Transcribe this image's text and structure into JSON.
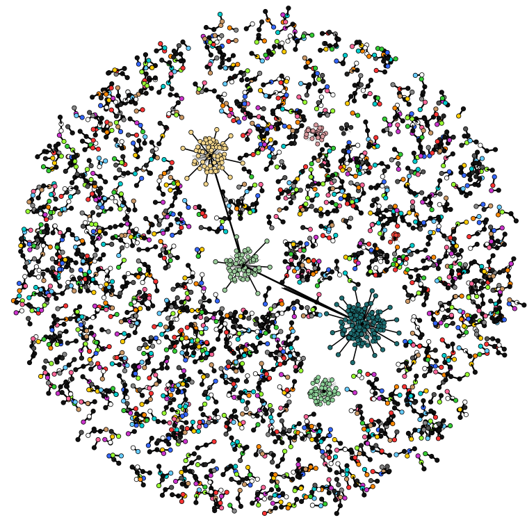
{
  "diagram": {
    "type": "network-graph",
    "layout": "force-directed",
    "labels_shown": false,
    "background_color": "#ffffff",
    "edge_color": "#000000",
    "node_stroke_color": "#000000",
    "node_shape": "circle",
    "small_component_colors": [
      "#ff3333",
      "#33cc33",
      "#3366ff",
      "#ffcc00",
      "#cc33cc",
      "#00cccc",
      "#ff8800",
      "#99ff33",
      "#888888",
      "#555555",
      "#ffffff",
      "#ffffff",
      "#222222",
      "#66ccff",
      "#ff6699",
      "#cc9966"
    ],
    "large_components": [
      {
        "id": "tan-cluster",
        "color": "#f2d58c",
        "approx_nodes": 70
      },
      {
        "id": "pink-cluster",
        "color": "#d99a9e",
        "approx_nodes": 25
      },
      {
        "id": "black-cluster",
        "color": "#333333",
        "approx_nodes": 6
      },
      {
        "id": "red-cluster",
        "color": "#e8443a",
        "approx_nodes": 8
      },
      {
        "id": "sage-cluster",
        "color": "#9ccc9c",
        "approx_nodes": 60
      },
      {
        "id": "teal-cluster",
        "color": "#1e6e72",
        "approx_nodes": 150
      },
      {
        "id": "lightgreen-cluster",
        "color": "#8fd49a",
        "approx_nodes": 50
      }
    ],
    "inter_cluster_edges": [
      {
        "from": "tan-cluster",
        "to": "sage-cluster"
      },
      {
        "from": "sage-cluster",
        "to": "teal-cluster"
      }
    ]
  }
}
